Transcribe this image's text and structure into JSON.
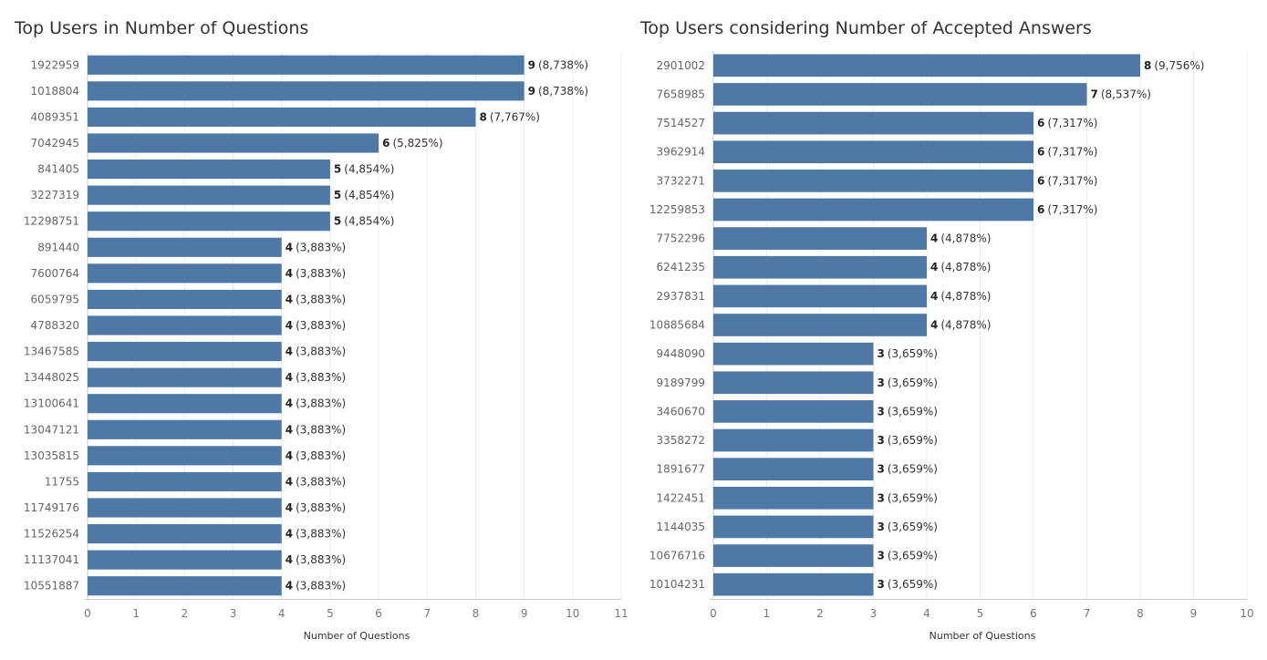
{
  "colors": {
    "bar": "#4e79a7",
    "grid": "#ececec",
    "axis": "#cccccc"
  },
  "chart_data": [
    {
      "type": "bar",
      "orientation": "horizontal",
      "title": "Top Users in Number of Questions",
      "xlabel": "Number of Questions",
      "ylabel": "",
      "xlim": [
        0,
        11
      ],
      "xticks": [
        "0",
        "1",
        "2",
        "3",
        "4",
        "5",
        "6",
        "7",
        "8",
        "9",
        "10",
        "11"
      ],
      "grid": true,
      "categories": [
        "1922959",
        "1018804",
        "4089351",
        "7042945",
        "841405",
        "3227319",
        "12298751",
        "891440",
        "7600764",
        "6059795",
        "4788320",
        "13467585",
        "13448025",
        "13100641",
        "13047121",
        "13035815",
        "11755",
        "11749176",
        "11526254",
        "11137041",
        "10551887"
      ],
      "values": [
        9,
        9,
        8,
        6,
        5,
        5,
        5,
        4,
        4,
        4,
        4,
        4,
        4,
        4,
        4,
        4,
        4,
        4,
        4,
        4,
        4
      ],
      "labels": [
        "(8,738%)",
        "(8,738%)",
        "(7,767%)",
        "(5,825%)",
        "(4,854%)",
        "(4,854%)",
        "(4,854%)",
        "(3,883%)",
        "(3,883%)",
        "(3,883%)",
        "(3,883%)",
        "(3,883%)",
        "(3,883%)",
        "(3,883%)",
        "(3,883%)",
        "(3,883%)",
        "(3,883%)",
        "(3,883%)",
        "(3,883%)",
        "(3,883%)",
        "(3,883%)"
      ]
    },
    {
      "type": "bar",
      "orientation": "horizontal",
      "title": "Top Users considering Number of Accepted Answers",
      "xlabel": "Number of Questions",
      "ylabel": "",
      "xlim": [
        0,
        10
      ],
      "xticks": [
        "0",
        "1",
        "2",
        "3",
        "4",
        "5",
        "6",
        "7",
        "8",
        "9",
        "10"
      ],
      "grid": true,
      "categories": [
        "2901002",
        "7658985",
        "7514527",
        "3962914",
        "3732271",
        "12259853",
        "7752296",
        "6241235",
        "2937831",
        "10885684",
        "9448090",
        "9189799",
        "3460670",
        "3358272",
        "1891677",
        "1422451",
        "1144035",
        "10676716",
        "10104231"
      ],
      "values": [
        8,
        7,
        6,
        6,
        6,
        6,
        4,
        4,
        4,
        4,
        3,
        3,
        3,
        3,
        3,
        3,
        3,
        3,
        3
      ],
      "labels": [
        "(9,756%)",
        "(8,537%)",
        "(7,317%)",
        "(7,317%)",
        "(7,317%)",
        "(7,317%)",
        "(4,878%)",
        "(4,878%)",
        "(4,878%)",
        "(4,878%)",
        "(3,659%)",
        "(3,659%)",
        "(3,659%)",
        "(3,659%)",
        "(3,659%)",
        "(3,659%)",
        "(3,659%)",
        "(3,659%)",
        "(3,659%)"
      ]
    }
  ]
}
